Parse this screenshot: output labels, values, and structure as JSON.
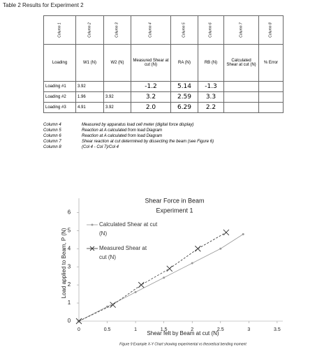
{
  "header": {
    "title": "Table 2 Results for Experiment 2"
  },
  "table": {
    "column_labels": [
      "Column 1",
      "Column 2",
      "Column 3",
      "Column 4",
      "Column 5",
      "Column 6",
      "Column 7",
      "Column 8"
    ],
    "header": [
      "Loading",
      "W1 (N)",
      "W2 (N)",
      "Measured Shear at cut (N)",
      "RA (N)",
      "RB (N)",
      "Calculated Shear at cut (N)",
      "% Error"
    ],
    "rows": [
      [
        "Loading #1",
        "3.92",
        null,
        "-1.2",
        "5.14",
        "-1.3",
        null,
        null
      ],
      [
        "Loading #2",
        "1.96",
        "3.92",
        "3.2",
        "2.59",
        "3.3",
        null,
        null
      ],
      [
        "Loading #3",
        "4.91",
        "3.92",
        "2.0",
        "6.29",
        "2.2",
        null,
        null
      ]
    ]
  },
  "notes": [
    {
      "column": "Column 4",
      "text": "Measured by apparatus load cell meter (digital force display)"
    },
    {
      "column": "Column 5",
      "text": "Reaction at A calculated from load Diagram"
    },
    {
      "column": "Column 6",
      "text": "Reaction at A calculated from load Diagram"
    },
    {
      "column": "Column 7",
      "text": "Shear reaction at cut determined by dissecting the beam (see Figure 6)"
    },
    {
      "column": "Column 8",
      "text": "(Col 4 - Col 7)/Col 4"
    }
  ],
  "chart_data": {
    "type": "line",
    "title": "Shear Force in Beam",
    "subtitle": "Experiment 1",
    "x_label": "Shear felt by Beam at cut (N)",
    "y_label": "Load applied to Beam, P (N)",
    "caption": "Figure 9 Example X-Y Chart showing experimental vs theoretical bending moment",
    "xlim": [
      0,
      3.6
    ],
    "ylim": [
      0,
      6.4
    ],
    "xticks": [
      0,
      0.5,
      1,
      1.5,
      2,
      2.5,
      3,
      3.5
    ],
    "yticks": [
      0,
      1,
      2,
      3,
      4,
      5,
      6
    ],
    "series": [
      {
        "name": "Calculated Shear at cut (N)",
        "color": "#999999",
        "marker": "dot",
        "x": [
          0,
          0.5,
          1,
          1.5,
          2,
          2.5,
          2.9
        ],
        "values": [
          0,
          0.8,
          1.6,
          2.4,
          3.2,
          4.0,
          4.8
        ]
      },
      {
        "name": "Measured Shear at cut (N)",
        "color": "#333333",
        "marker": "x",
        "x": [
          0,
          0.6,
          1.1,
          1.6,
          2.1,
          2.6
        ],
        "values": [
          0,
          0.9,
          2.0,
          2.9,
          4.0,
          4.9
        ]
      }
    ]
  }
}
